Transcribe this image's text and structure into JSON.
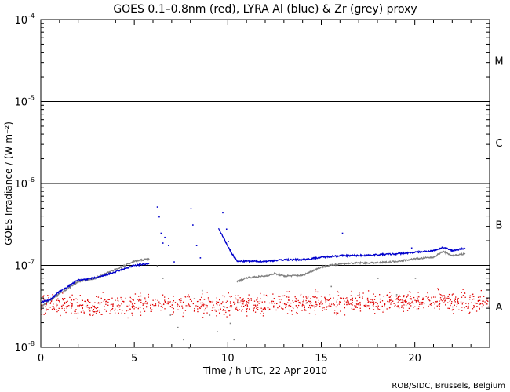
{
  "chart_data": {
    "type": "scatter",
    "title": "GOES 0.1–0.8nm (red), LYRA Al (blue) & Zr (grey) proxy",
    "xlabel": "Time / h UTC, 22 Apr 2010",
    "ylabel": "GOES Irradiance / (W m⁻²)",
    "credit": "ROB/SIDC, Brussels, Belgium",
    "xlim": [
      0,
      24
    ],
    "ylim_log10": [
      -8,
      -4
    ],
    "y_scale": "log",
    "x_ticks": [
      0,
      5,
      10,
      15,
      20
    ],
    "x_tick_labels": [
      "0",
      "5",
      "10",
      "15",
      "20"
    ],
    "y_ticks": [
      {
        "base": "10",
        "exp": "-8",
        "log": -8
      },
      {
        "base": "10",
        "exp": "-7",
        "log": -7
      },
      {
        "base": "10",
        "exp": "-6",
        "log": -6
      },
      {
        "base": "10",
        "exp": "-5",
        "log": -5
      },
      {
        "base": "10",
        "exp": "-4",
        "log": -4
      }
    ],
    "class_thresholds_log10": [
      -7,
      -6,
      -5
    ],
    "class_labels": [
      {
        "label": "A",
        "log": -7.5
      },
      {
        "label": "B",
        "log": -6.5
      },
      {
        "label": "C",
        "log": -5.5
      },
      {
        "label": "M",
        "log": -4.5
      }
    ],
    "series": [
      {
        "name": "GOES 0.1-0.8nm",
        "color": "#e00000",
        "style": "noisy-points",
        "x": [
          0,
          2,
          4,
          6,
          8,
          10,
          12,
          14,
          16,
          18,
          20,
          22,
          24
        ],
        "log10": [
          -7.48,
          -7.48,
          -7.48,
          -7.48,
          -7.48,
          -7.48,
          -7.46,
          -7.46,
          -7.45,
          -7.45,
          -7.44,
          -7.43,
          -7.44
        ]
      },
      {
        "name": "LYRA Al proxy",
        "color": "#0000cc",
        "style": "dense-line",
        "x": [
          0,
          0.5,
          1,
          2,
          3,
          4,
          5,
          5.8,
          9.5,
          10.2,
          10.5,
          11,
          12,
          13,
          14,
          15,
          16,
          17,
          18,
          19,
          20,
          21,
          21.5,
          22,
          22.7
        ],
        "log10": [
          -7.45,
          -7.42,
          -7.32,
          -7.18,
          -7.15,
          -7.08,
          -7.0,
          -6.98,
          -6.55,
          -6.85,
          -6.95,
          -6.95,
          -6.95,
          -6.93,
          -6.93,
          -6.9,
          -6.88,
          -6.88,
          -6.87,
          -6.86,
          -6.84,
          -6.82,
          -6.78,
          -6.82,
          -6.79
        ]
      },
      {
        "name": "LYRA Zr proxy",
        "color": "#808080",
        "style": "dense-line",
        "x": [
          0,
          1,
          2,
          3,
          4,
          5,
          5.8,
          10.5,
          11,
          12,
          12.5,
          13,
          14,
          15,
          16,
          17,
          18,
          19,
          20,
          21,
          21.5,
          22,
          22.7
        ],
        "log10": [
          -7.5,
          -7.35,
          -7.2,
          -7.15,
          -7.05,
          -6.95,
          -6.92,
          -7.2,
          -7.15,
          -7.13,
          -7.1,
          -7.13,
          -7.12,
          -7.02,
          -6.98,
          -6.97,
          -6.97,
          -6.95,
          -6.92,
          -6.9,
          -6.83,
          -6.88,
          -6.86
        ]
      }
    ],
    "scattered_blue_points": [
      {
        "x": 6.2,
        "log10": -6.28
      },
      {
        "x": 6.3,
        "log10": -6.4
      },
      {
        "x": 6.4,
        "log10": -6.6
      },
      {
        "x": 6.5,
        "log10": -6.72
      },
      {
        "x": 6.6,
        "log10": -6.65
      },
      {
        "x": 6.8,
        "log10": -6.75
      },
      {
        "x": 7.1,
        "log10": -6.95
      },
      {
        "x": 8.0,
        "log10": -6.3
      },
      {
        "x": 8.1,
        "log10": -6.5
      },
      {
        "x": 8.3,
        "log10": -6.75
      },
      {
        "x": 8.5,
        "log10": -6.9
      },
      {
        "x": 9.7,
        "log10": -6.35
      },
      {
        "x": 9.9,
        "log10": -6.55
      },
      {
        "x": 10.0,
        "log10": -6.7
      },
      {
        "x": 10.1,
        "log10": -6.8
      },
      {
        "x": 16.1,
        "log10": -6.6
      },
      {
        "x": 19.8,
        "log10": -6.78
      }
    ],
    "scattered_grey_points": [
      {
        "x": 6.2,
        "log10": -7.0
      },
      {
        "x": 6.5,
        "log10": -7.15
      },
      {
        "x": 6.9,
        "log10": -7.6
      },
      {
        "x": 7.3,
        "log10": -7.75
      },
      {
        "x": 7.6,
        "log10": -7.9
      },
      {
        "x": 7.9,
        "log10": -8.0
      },
      {
        "x": 8.2,
        "log10": -7.4
      },
      {
        "x": 8.6,
        "log10": -7.3
      },
      {
        "x": 9.0,
        "log10": -7.6
      },
      {
        "x": 9.4,
        "log10": -7.8
      },
      {
        "x": 9.8,
        "log10": -7.5
      },
      {
        "x": 10.1,
        "log10": -7.7
      },
      {
        "x": 10.3,
        "log10": -7.9
      },
      {
        "x": 10.5,
        "log10": -7.45
      },
      {
        "x": 14.2,
        "log10": -7.45
      },
      {
        "x": 15.5,
        "log10": -7.25
      },
      {
        "x": 17.0,
        "log10": -7.35
      },
      {
        "x": 18.0,
        "log10": -7.15
      },
      {
        "x": 19.0,
        "log10": -7.35
      },
      {
        "x": 20.0,
        "log10": -7.15
      }
    ]
  }
}
